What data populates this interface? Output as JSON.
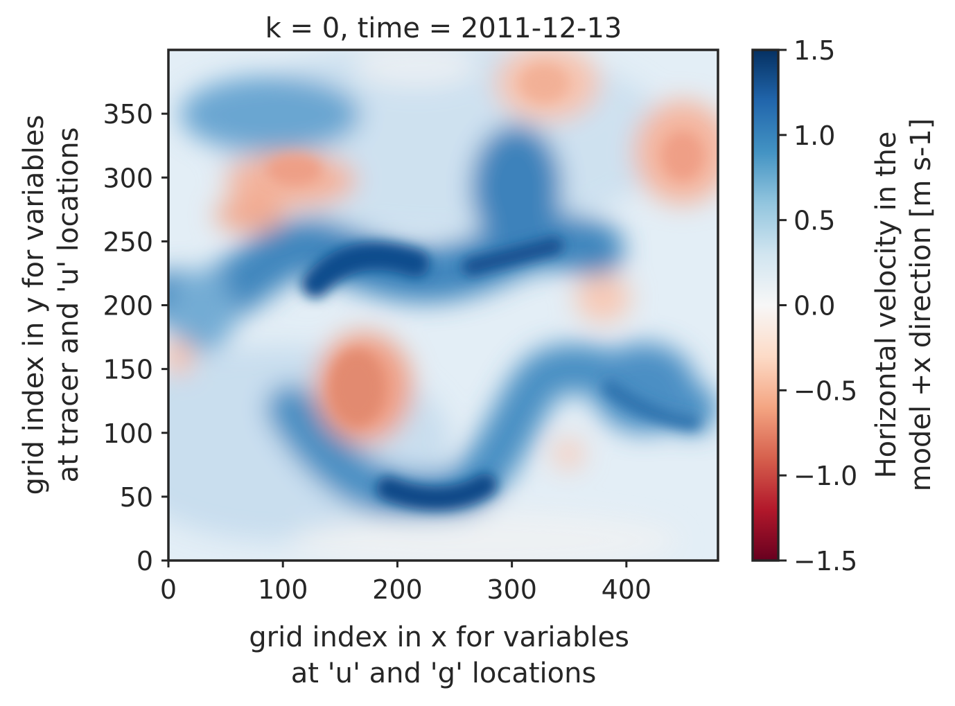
{
  "chart_data": {
    "type": "heatmap",
    "title": "k = 0, time = 2011-12-13",
    "xlabel": [
      "grid index in x for variables",
      "at 'u' and 'g' locations"
    ],
    "ylabel": [
      "grid index in y for variables",
      "at tracer and 'u' locations"
    ],
    "xlim": [
      0,
      480
    ],
    "ylim": [
      0,
      400
    ],
    "xticks": [
      0,
      100,
      200,
      300,
      400
    ],
    "xtick_labels": [
      "0",
      "100",
      "200",
      "300",
      "400"
    ],
    "yticks": [
      0,
      50,
      100,
      150,
      200,
      250,
      300,
      350
    ],
    "ytick_labels": [
      "0",
      "50",
      "100",
      "150",
      "200",
      "250",
      "300",
      "350"
    ],
    "colorbar": {
      "label": [
        "Horizontal velocity in the",
        "model +x direction [m s-1]"
      ],
      "colormap": "RdBu",
      "vmin": -1.5,
      "vmax": 1.5,
      "ticks": [
        1.5,
        1.0,
        0.5,
        0.0,
        -0.5,
        -1.0,
        -1.5
      ],
      "tick_labels": [
        "1.5",
        "1.0",
        "0.5",
        "0.0",
        "−0.5",
        "−1.0",
        "−1.5"
      ]
    },
    "features": [
      {
        "sign": "positive",
        "x": 160,
        "y": 225,
        "value": 1.4
      },
      {
        "sign": "positive",
        "x": 250,
        "y": 48,
        "value": 1.45
      },
      {
        "sign": "positive",
        "x": 320,
        "y": 235,
        "value": 1.3
      },
      {
        "sign": "positive",
        "x": 300,
        "y": 290,
        "value": 1.0
      },
      {
        "sign": "positive",
        "x": 380,
        "y": 165,
        "value": 1.0
      },
      {
        "sign": "positive",
        "x": 90,
        "y": 350,
        "value": 0.9
      },
      {
        "sign": "negative",
        "x": 165,
        "y": 140,
        "value": -0.55
      },
      {
        "sign": "negative",
        "x": 110,
        "y": 300,
        "value": -0.45
      },
      {
        "sign": "negative",
        "x": 70,
        "y": 265,
        "value": -0.5
      },
      {
        "sign": "negative",
        "x": 420,
        "y": 330,
        "value": -0.4
      },
      {
        "sign": "negative",
        "x": 340,
        "y": 370,
        "value": -0.35
      }
    ]
  }
}
